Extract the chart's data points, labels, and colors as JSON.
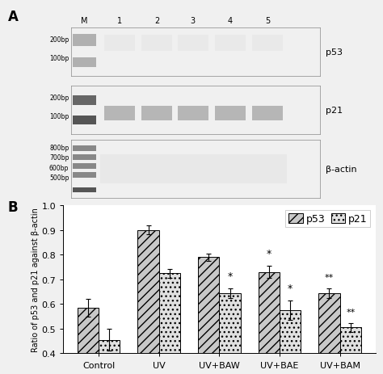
{
  "panel_B": {
    "categories": [
      "Control",
      "UV",
      "UV+BAW",
      "UV+BAE",
      "UV+BAM"
    ],
    "p53_values": [
      0.585,
      0.9,
      0.79,
      0.73,
      0.645
    ],
    "p21_values": [
      0.455,
      0.725,
      0.645,
      0.575,
      0.505
    ],
    "p53_errors": [
      0.035,
      0.018,
      0.015,
      0.025,
      0.02
    ],
    "p21_errors": [
      0.045,
      0.018,
      0.02,
      0.04,
      0.018
    ],
    "ylim": [
      0.4,
      1.0
    ],
    "yticks": [
      0.4,
      0.5,
      0.6,
      0.7,
      0.8,
      0.9,
      1.0
    ],
    "ylabel": "Ratio of p53 and p21 against β-actin",
    "p53_facecolor": "#c8c8c8",
    "p21_facecolor": "#e0e0e0",
    "p53_edgecolor": "#000000",
    "p21_edgecolor": "#000000",
    "bar_width": 0.3,
    "tick_fontsize": 8,
    "legend_fontsize": 9
  },
  "gel": {
    "lane_labels": [
      "M",
      "1",
      "2",
      "3",
      "4",
      "5"
    ],
    "gene_labels": [
      "p53",
      "p21",
      "β-actin"
    ],
    "gel_bg": "#1c1c1c",
    "gel_bg2": "#252525",
    "band_bright": "#e8e8e8",
    "band_mid": "#b0b0b0",
    "bp_labels_p53": [
      [
        "200bp",
        0.78
      ],
      [
        "100bp",
        0.57
      ]
    ],
    "bp_labels_p21": [
      [
        "200bp",
        0.78
      ],
      [
        "100bp",
        0.57
      ]
    ],
    "bp_labels_actin": [
      [
        "800bp",
        0.85
      ],
      [
        "700bp",
        0.7
      ],
      [
        "600bp",
        0.55
      ],
      [
        "500bp",
        0.38
      ]
    ]
  }
}
